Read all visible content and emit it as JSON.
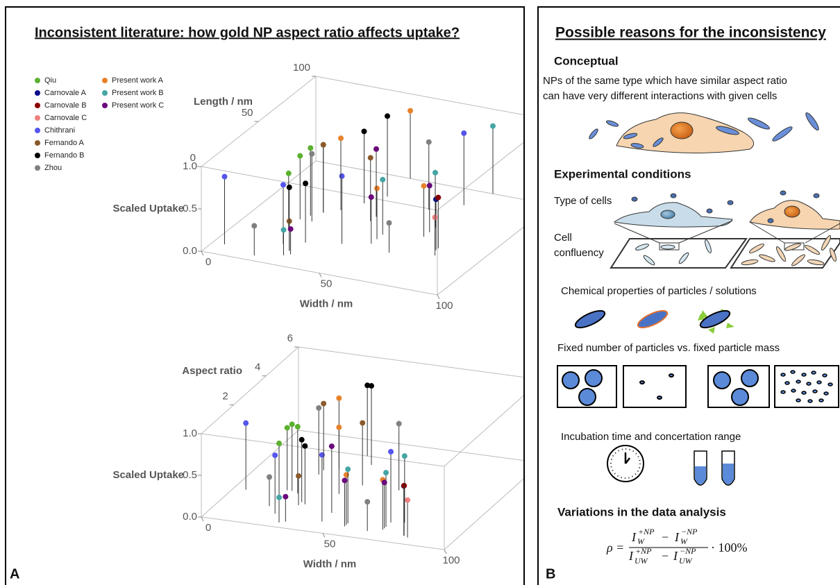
{
  "panel_a": {
    "title": "Inconsistent literature: how gold NP aspect ratio affects uptake?",
    "label": "A"
  },
  "chart_data": [
    {
      "type": "scatter3d",
      "xlabel": "Width / nm",
      "ylabel": "Length / nm",
      "zlabel": "Scaled Uptake",
      "xlim": [
        0,
        100
      ],
      "ylim": [
        0,
        100
      ],
      "zlim": [
        0,
        1
      ],
      "xticks": [
        0,
        50,
        100
      ],
      "yticks": [
        0,
        50,
        100
      ],
      "zticks": [
        {
          "value": 0,
          "label": "0.0"
        },
        0.5,
        {
          "value": 1,
          "label": "1.0"
        }
      ],
      "legend": "upper left",
      "series": [
        {
          "name": "Qiu",
          "color": "#5bb12f",
          "x": [
            20,
            22,
            25,
            20
          ],
          "y": [
            45,
            50,
            55,
            35
          ],
          "z": [
            0.75,
            0.8,
            0.8,
            0.65
          ]
        },
        {
          "name": "Carnovale A",
          "color": "#0a0a8c",
          "x": [
            80
          ],
          "y": [
            40
          ],
          "z": [
            0.6
          ]
        },
        {
          "name": "Carnovale B",
          "color": "#8b0000",
          "x": [
            80
          ],
          "y": [
            42
          ],
          "z": [
            0.6
          ]
        },
        {
          "name": "Carnovale C",
          "color": "#f08080",
          "x": [
            82
          ],
          "y": [
            35
          ],
          "z": [
            0.45
          ]
        },
        {
          "name": "Chithrani",
          "color": "#5555ee",
          "x": [
            5,
            25,
            45,
            70
          ],
          "y": [
            10,
            20,
            30,
            85
          ],
          "z": [
            0.8,
            0.7,
            0.8,
            0.85
          ]
        },
        {
          "name": "Fernando A",
          "color": "#8b5a2b",
          "x": [
            25,
            45,
            30
          ],
          "y": [
            55,
            55,
            15
          ],
          "z": [
            0.8,
            0.75,
            0.35
          ]
        },
        {
          "name": "Fernando B",
          "color": "#000000",
          "x": [
            35,
            30,
            32,
            40
          ],
          "y": [
            70,
            15,
            25,
            80
          ],
          "z": [
            0.85,
            0.75,
            0.7,
            0.95
          ]
        },
        {
          "name": "Zhou",
          "color": "#808080",
          "x": [
            25,
            60,
            65,
            20
          ],
          "y": [
            45,
            75,
            30,
            5
          ],
          "z": [
            0.8,
            0.8,
            0.35,
            0.35
          ]
        },
        {
          "name": "Present work A",
          "color": "#e8822a",
          "x": [
            30,
            55,
            70,
            40
          ],
          "y": [
            60,
            40,
            50,
            100
          ],
          "z": [
            0.85,
            0.6,
            0.6,
            0.8
          ]
        },
        {
          "name": "Present work B",
          "color": "#45a5a5",
          "x": [
            55,
            70,
            30,
            75
          ],
          "y": [
            45,
            60,
            10,
            100
          ],
          "z": [
            0.65,
            0.65,
            0.3,
            0.8
          ]
        },
        {
          "name": "Present work C",
          "color": "#6a0a7a",
          "x": [
            55,
            70,
            32,
            45
          ],
          "y": [
            35,
            55,
            12,
            60
          ],
          "z": [
            0.55,
            0.55,
            0.3,
            0.8
          ]
        }
      ]
    },
    {
      "type": "scatter3d",
      "xlabel": "Width / nm",
      "ylabel": "Aspect ratio",
      "zlabel": "Scaled Uptake",
      "xlim": [
        0,
        100
      ],
      "ylim": [
        0,
        6
      ],
      "zlim": [
        0,
        1
      ],
      "xticks": [
        0,
        50,
        100
      ],
      "yticks": [
        2,
        4,
        6
      ],
      "zticks": [
        {
          "value": 0,
          "label": "0.0"
        },
        0.5,
        {
          "value": 1,
          "label": "1.0"
        }
      ],
      "series": [
        {
          "color": "#5bb12f",
          "x": [
            20,
            22,
            25,
            20
          ],
          "y": [
            2.3,
            2.3,
            2.2,
            1.8
          ],
          "z": [
            0.75,
            0.8,
            0.8,
            0.65
          ]
        },
        {
          "color": "#0a0a8c",
          "x": [
            80
          ],
          "y": [
            0.5
          ],
          "z": [
            0.6
          ]
        },
        {
          "color": "#8b0000",
          "x": [
            80
          ],
          "y": [
            0.52
          ],
          "z": [
            0.6
          ]
        },
        {
          "color": "#f08080",
          "x": [
            82
          ],
          "y": [
            0.43
          ],
          "z": [
            0.45
          ]
        },
        {
          "color": "#5555ee",
          "x": [
            5,
            25,
            45,
            70
          ],
          "y": [
            2,
            0.8,
            0.7,
            1.2
          ],
          "z": [
            0.8,
            0.7,
            0.8,
            0.85
          ]
        },
        {
          "color": "#8b5a2b",
          "x": [
            25,
            45,
            30
          ],
          "y": [
            3.8,
            3.2,
            1.5
          ],
          "z": [
            0.8,
            0.75,
            0.35
          ]
        },
        {
          "color": "#000000",
          "x": [
            35,
            30,
            32,
            40
          ],
          "y": [
            5,
            1.7,
            1.6,
            4.5
          ],
          "z": [
            0.85,
            0.75,
            0.7,
            0.95
          ]
        },
        {
          "color": "#808080",
          "x": [
            25,
            60,
            65,
            20
          ],
          "y": [
            3.5,
            3.2,
            0.5,
            1.2
          ],
          "z": [
            0.8,
            0.8,
            0.35,
            0.35
          ]
        },
        {
          "color": "#e8822a",
          "x": [
            30,
            55,
            70,
            40
          ],
          "y": [
            4,
            0.7,
            0.7,
            2.5
          ],
          "z": [
            0.85,
            0.6,
            0.6,
            0.8
          ]
        },
        {
          "color": "#45a5a5",
          "x": [
            55,
            70,
            30,
            75
          ],
          "y": [
            0.8,
            0.9,
            0.3,
            1.3
          ],
          "z": [
            0.65,
            0.65,
            0.3,
            0.8
          ]
        },
        {
          "color": "#6a0a7a",
          "x": [
            55,
            70,
            32,
            45
          ],
          "y": [
            0.6,
            0.8,
            0.4,
            1.3
          ],
          "z": [
            0.55,
            0.55,
            0.3,
            0.8
          ]
        }
      ]
    }
  ],
  "panel_b": {
    "title": "Possible reasons for the inconsistency",
    "label": "B",
    "conceptual": "Conceptual",
    "conceptual_text": [
      "NPs of the same type which have similar aspect ratio",
      "can have very different interactions with given cells"
    ],
    "experimental": "Experimental conditions",
    "cell_type": "Type of cells",
    "confluency": [
      "Cell",
      "confluency"
    ],
    "chemical": "Chemical properties of particles  / solutions",
    "number_mass": "Fixed number of particles vs. fixed particle mass",
    "incubation": "Incubation time and concertation range",
    "analysis": "Variations in the data analysis",
    "formula": {
      "lhs": "ρ =",
      "var": "I",
      "numerator_sub": "W",
      "denominator_sub": "UW",
      "plus": "+NP",
      "minus": "−NP",
      "operator": "−",
      "factor": "· 100%"
    }
  }
}
